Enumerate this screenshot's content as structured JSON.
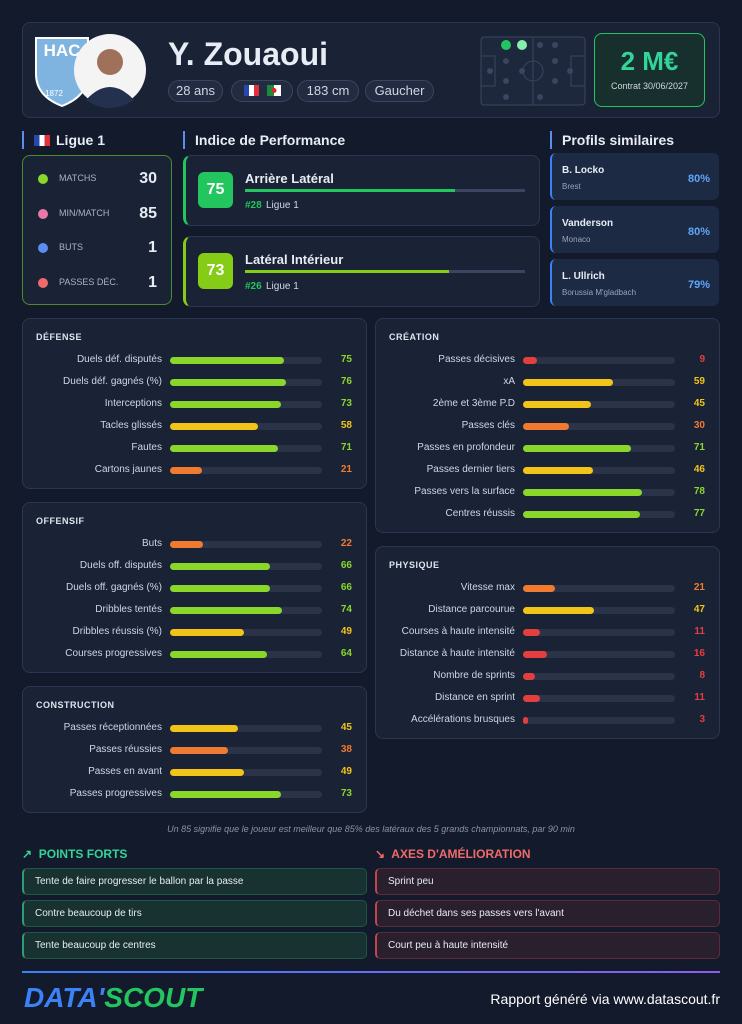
{
  "header": {
    "logo_text": "HAC",
    "logo_year": "1872",
    "name": "Y. Zouaoui",
    "pills": [
      "28 ans",
      "183 cm",
      "Gaucher"
    ],
    "market_value": "2 M€",
    "contract": "Contrat 30/06/2027"
  },
  "league": {
    "title": "Ligue 1",
    "stats": [
      {
        "label": "MATCHS",
        "value": 30
      },
      {
        "label": "MIN/MATCH",
        "value": 85
      },
      {
        "label": "BUTS",
        "value": 1
      },
      {
        "label": "PASSES DÉC.",
        "value": 1
      }
    ]
  },
  "performance": {
    "title": "Indice de Performance",
    "roles": [
      {
        "score": 75,
        "role": "Arrière Latéral",
        "rank": "#28",
        "league": "Ligue 1"
      },
      {
        "score": 73,
        "role": "Latéral Intérieur",
        "rank": "#26",
        "league": "Ligue 1"
      }
    ]
  },
  "similar": {
    "title": "Profils similaires",
    "players": [
      {
        "name": "B. Locko",
        "club": "Brest",
        "match": "80%"
      },
      {
        "name": "Vanderson",
        "club": "Monaco",
        "match": "80%"
      },
      {
        "name": "L. Ullrich",
        "club": "Borussia M'gladbach",
        "match": "79%"
      }
    ]
  },
  "sections": [
    {
      "title": "DÉFENSE",
      "metrics": [
        {
          "label": "Duels déf. disputés",
          "value": 75
        },
        {
          "label": "Duels déf. gagnés (%)",
          "value": 76
        },
        {
          "label": "Interceptions",
          "value": 73
        },
        {
          "label": "Tacles glissés",
          "value": 58
        },
        {
          "label": "Fautes",
          "value": 71
        },
        {
          "label": "Cartons jaunes",
          "value": 21
        }
      ]
    },
    {
      "title": "OFFENSIF",
      "metrics": [
        {
          "label": "Buts",
          "value": 22
        },
        {
          "label": "Duels off. disputés",
          "value": 66
        },
        {
          "label": "Duels off. gagnés (%)",
          "value": 66
        },
        {
          "label": "Dribbles tentés",
          "value": 74
        },
        {
          "label": "Dribbles réussis (%)",
          "value": 49
        },
        {
          "label": "Courses progressives",
          "value": 64
        }
      ]
    },
    {
      "title": "CONSTRUCTION",
      "metrics": [
        {
          "label": "Passes réceptionnées",
          "value": 45
        },
        {
          "label": "Passes réussies",
          "value": 38
        },
        {
          "label": "Passes en avant",
          "value": 49
        },
        {
          "label": "Passes progressives",
          "value": 73
        }
      ]
    },
    {
      "title": "CRÉATION",
      "metrics": [
        {
          "label": "Passes décisives",
          "value": 9
        },
        {
          "label": "xA",
          "value": 59
        },
        {
          "label": "2ème et 3ème P.D",
          "value": 45
        },
        {
          "label": "Passes clés",
          "value": 30
        },
        {
          "label": "Passes en profondeur",
          "value": 71
        },
        {
          "label": "Passes dernier tiers",
          "value": 46
        },
        {
          "label": "Passes vers la surface",
          "value": 78
        },
        {
          "label": "Centres réussis",
          "value": 77
        }
      ]
    },
    {
      "title": "PHYSIQUE",
      "metrics": [
        {
          "label": "Vitesse max",
          "value": 21
        },
        {
          "label": "Distance parcourue",
          "value": 47
        },
        {
          "label": "Courses à haute intensité",
          "value": 11
        },
        {
          "label": "Distance à haute intensité",
          "value": 16
        },
        {
          "label": "Nombre de sprints",
          "value": 8
        },
        {
          "label": "Distance en sprint",
          "value": 11
        },
        {
          "label": "Accélérations brusques",
          "value": 3
        }
      ]
    }
  ],
  "footnote": "Un 85 signifie que le joueur est meilleur que 85% des latéraux des 5 grands championnats, par 90 min",
  "strengths": {
    "title": "POINTS FORTS",
    "items": [
      "Tente de faire progresser le ballon par la passe",
      "Contre beaucoup de tirs",
      "Tente beaucoup de centres"
    ]
  },
  "weaknesses": {
    "title": "AXES D'AMÉLIORATION",
    "items": [
      "Sprint peu",
      "Du déchet dans ses passes vers l'avant",
      "Court peu à haute intensité"
    ]
  },
  "footer": {
    "brand": [
      "DATA'",
      "SCOUT"
    ],
    "report": "Rapport généré via www.datascout.fr"
  }
}
